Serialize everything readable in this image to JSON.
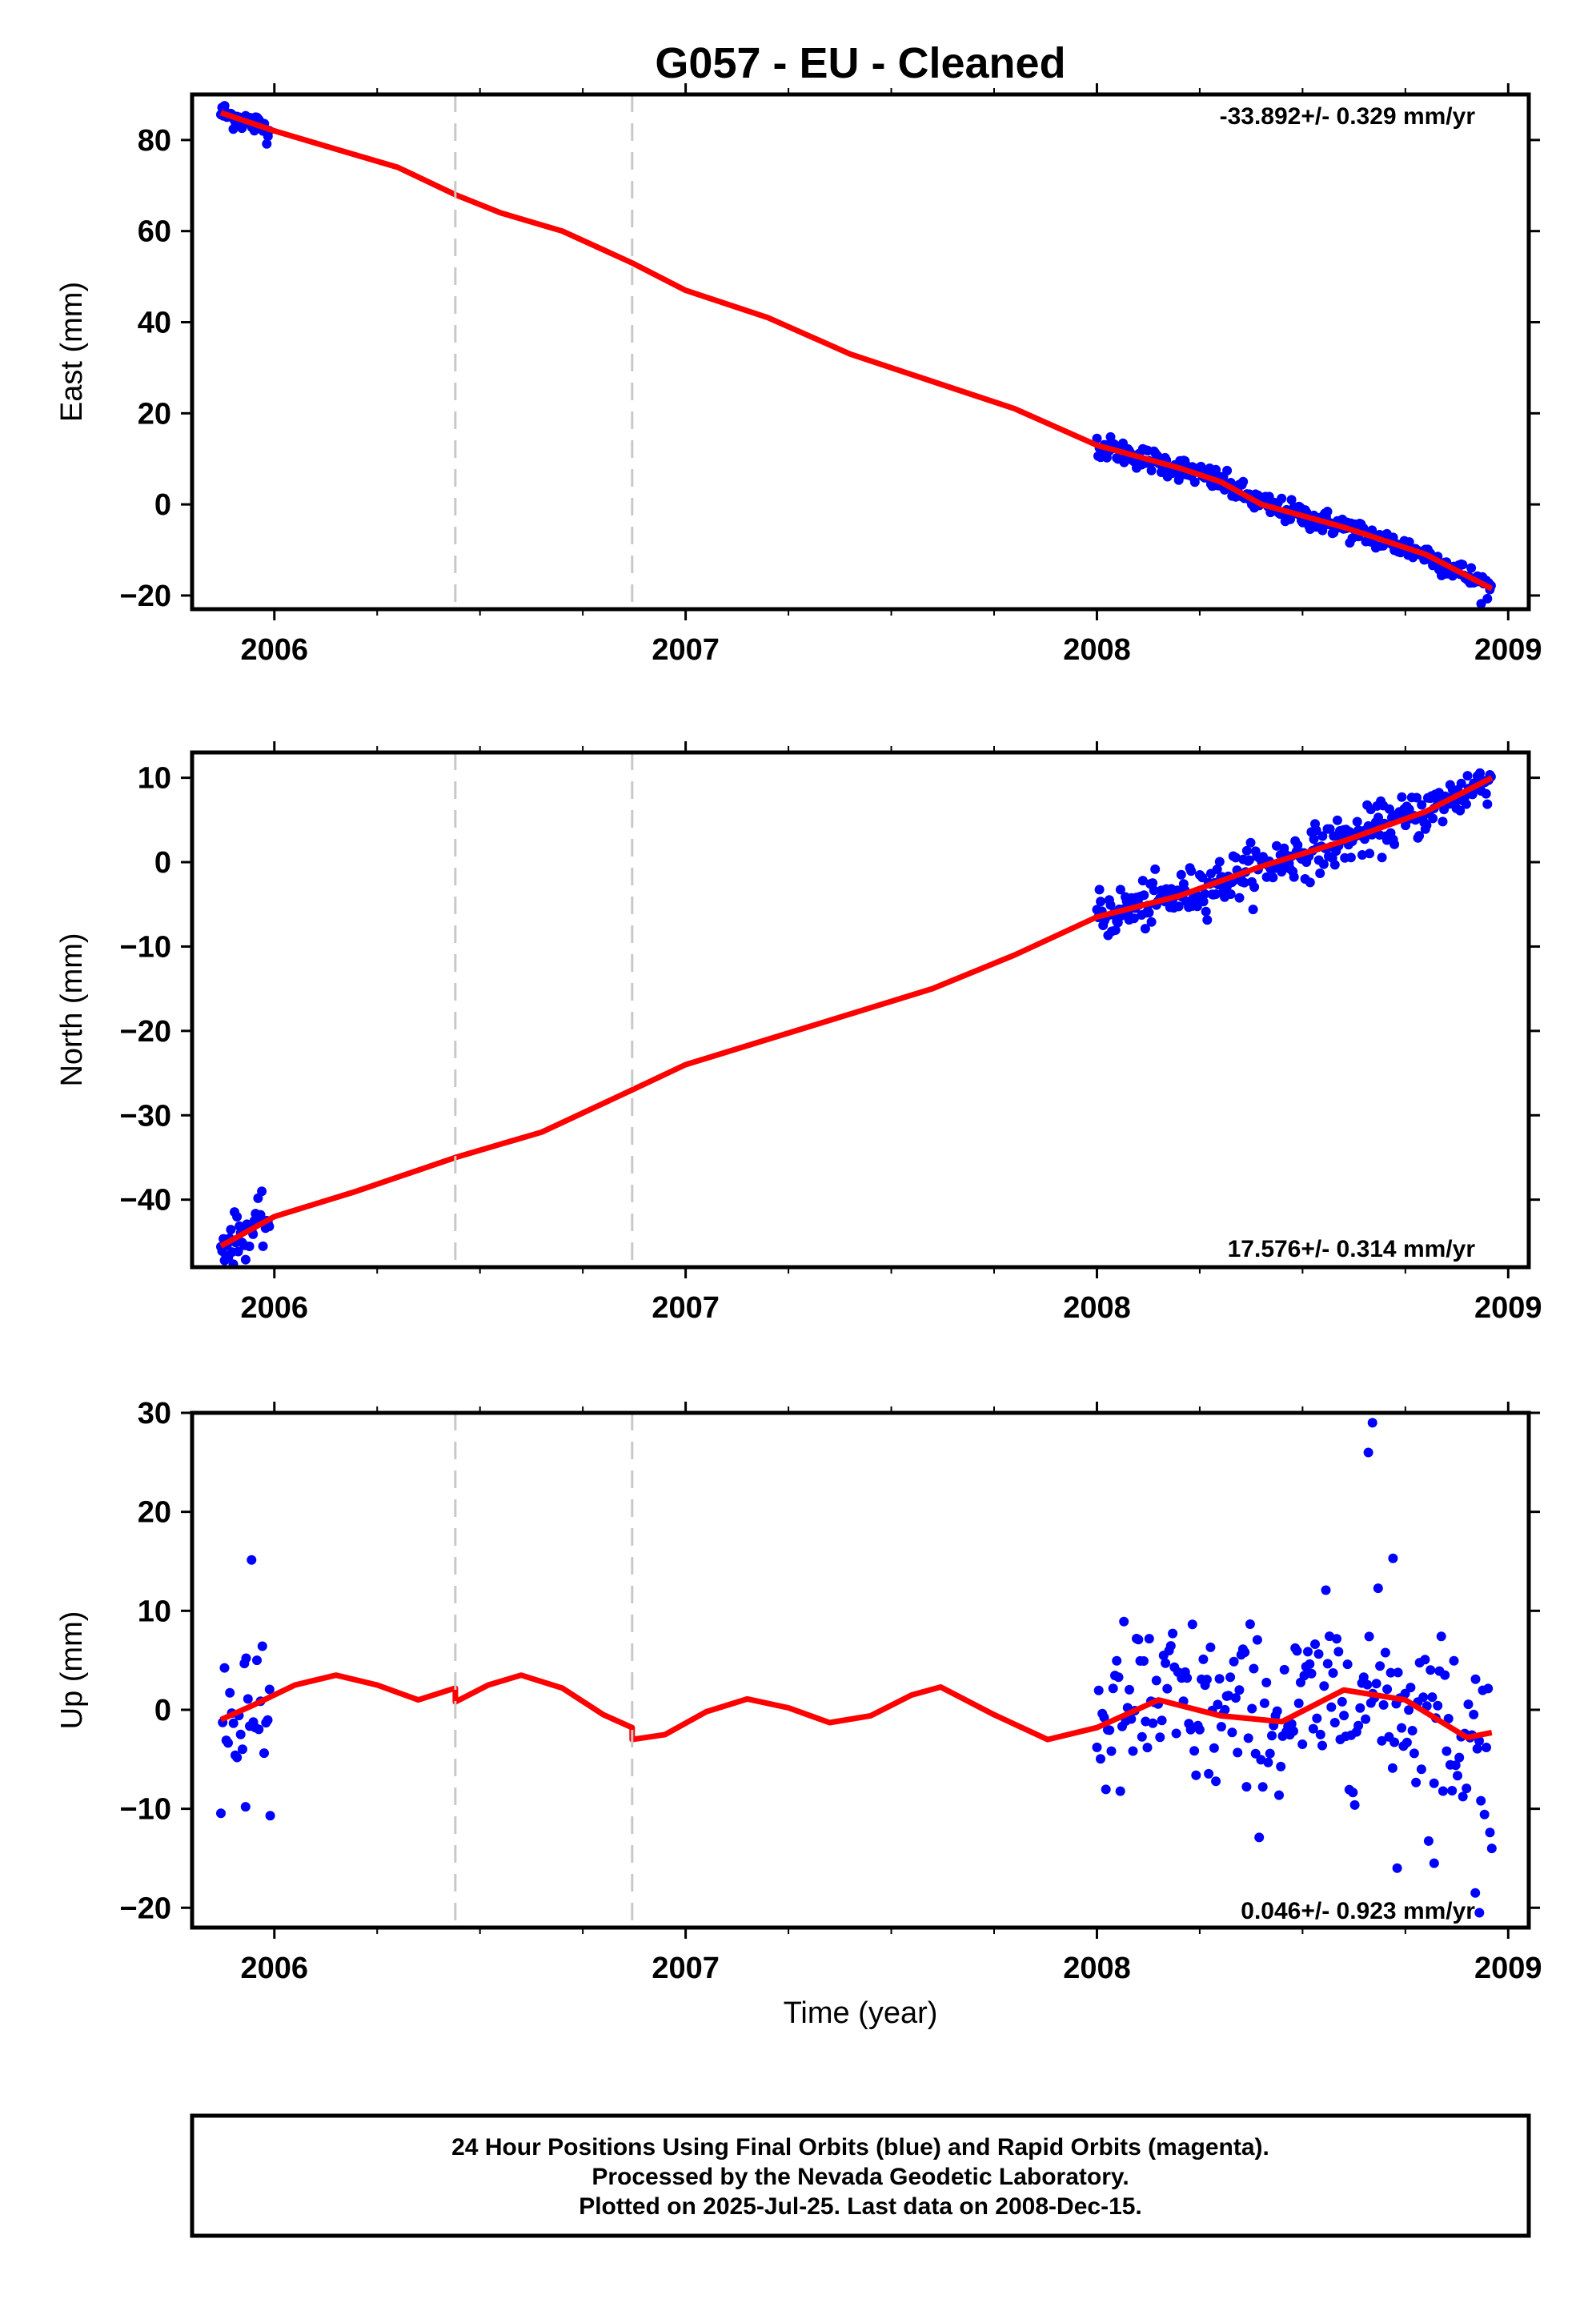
{
  "title": "G057  - EU - Cleaned",
  "xlabel": "Time (year)",
  "footer": [
    "24 Hour Positions Using Final Orbits (blue) and Rapid Orbits (magenta).",
    "Processed by the Nevada Geodetic Laboratory.",
    "Plotted on 2025-Jul-25. Last data on 2008-Dec-15."
  ],
  "colors": {
    "points": "#0000ff",
    "fit": "#ff0000",
    "breaks": "#c8c8c8",
    "frame": "#000000"
  },
  "chart_data": [
    {
      "type": "scatter",
      "component": "east",
      "ylabel": "East (mm)",
      "rate_label": "-33.892+/- 0.329 mm/yr",
      "rate_position": "top-right",
      "xlim": [
        2005.8,
        2009.05
      ],
      "ylim": [
        -23,
        90
      ],
      "xticks": [
        2006,
        2007,
        2008,
        2009
      ],
      "yticks": [
        -20,
        0,
        20,
        40,
        60,
        80
      ],
      "breaks": [
        2006.44,
        2006.87
      ],
      "data_segments": [
        [
          2005.87,
          2005.99
        ],
        [
          2008.0,
          2008.96
        ]
      ],
      "fit_curve": {
        "x": [
          2005.87,
          2006.0,
          2006.15,
          2006.3,
          2006.44,
          2006.55,
          2006.7,
          2006.87,
          2007.0,
          2007.2,
          2007.4,
          2007.6,
          2007.8,
          2008.0,
          2008.2,
          2008.3,
          2008.4,
          2008.6,
          2008.8,
          2008.96
        ],
        "y": [
          86,
          82,
          78,
          74,
          68,
          64,
          60,
          53,
          47,
          41,
          33,
          27,
          21,
          13,
          8,
          5,
          0,
          -5,
          -11,
          -18.5
        ]
      },
      "scatter_noise": 1.3
    },
    {
      "type": "scatter",
      "component": "north",
      "ylabel": "North (mm)",
      "rate_label": "17.576+/- 0.314 mm/yr",
      "rate_position": "bottom-right",
      "xlim": [
        2005.8,
        2009.05
      ],
      "ylim": [
        -48,
        13
      ],
      "xticks": [
        2006,
        2007,
        2008,
        2009
      ],
      "yticks": [
        -40,
        -30,
        -20,
        -10,
        0,
        10
      ],
      "breaks": [
        2006.44,
        2006.87
      ],
      "data_segments": [
        [
          2005.87,
          2005.99
        ],
        [
          2008.0,
          2008.96
        ]
      ],
      "fit_curve": {
        "x": [
          2005.87,
          2006.0,
          2006.2,
          2006.44,
          2006.65,
          2006.87,
          2007.0,
          2007.2,
          2007.4,
          2007.6,
          2007.8,
          2008.0,
          2008.2,
          2008.4,
          2008.6,
          2008.8,
          2008.96
        ],
        "y": [
          -45.5,
          -42,
          -39,
          -35,
          -32,
          -27,
          -24,
          -21,
          -18,
          -15,
          -11,
          -6.5,
          -4,
          -0.5,
          2.5,
          6,
          10
        ]
      },
      "scatter_noise": 1.4
    },
    {
      "type": "scatter",
      "component": "up",
      "ylabel": "Up (mm)",
      "rate_label": "0.046+/- 0.923 mm/yr",
      "rate_position": "bottom-right",
      "xlim": [
        2005.8,
        2009.05
      ],
      "ylim": [
        -22,
        30
      ],
      "xticks": [
        2006,
        2007,
        2008,
        2009
      ],
      "yticks": [
        -20,
        -10,
        0,
        10,
        20,
        30
      ],
      "breaks": [
        2006.44,
        2006.87
      ],
      "data_segments": [
        [
          2005.87,
          2005.99
        ],
        [
          2008.0,
          2008.96
        ]
      ],
      "fit_curve": {
        "x": [
          2005.87,
          2005.95,
          2006.05,
          2006.15,
          2006.25,
          2006.35,
          2006.44,
          2006.44,
          2006.52,
          2006.6,
          2006.7,
          2006.8,
          2006.87,
          2006.87,
          2006.95,
          2007.05,
          2007.15,
          2007.25,
          2007.35,
          2007.45,
          2007.55,
          2007.62,
          2007.75,
          2007.88,
          2008.0,
          2008.15,
          2008.3,
          2008.45,
          2008.6,
          2008.75,
          2008.9,
          2008.96
        ],
        "y": [
          -1,
          0.5,
          2.5,
          3.5,
          2.5,
          1,
          2.2,
          0.8,
          2.5,
          3.5,
          2.2,
          -0.5,
          -1.8,
          -3,
          -2.5,
          -0.2,
          1.1,
          0.2,
          -1.3,
          -0.6,
          1.5,
          2.3,
          -0.5,
          -3,
          -1.8,
          1.0,
          -0.6,
          -1.2,
          2.0,
          1.0,
          -2.8,
          -2.3
        ]
      },
      "scatter_noise": 4.5,
      "outliers": [
        [
          2008.67,
          29
        ],
        [
          2008.66,
          26
        ],
        [
          2008.72,
          15.3
        ],
        [
          2008.73,
          -16
        ],
        [
          2008.93,
          -20.5
        ],
        [
          2008.92,
          -18.5
        ],
        [
          2008.82,
          -15.5
        ],
        [
          2008.96,
          -14
        ],
        [
          2005.99,
          -10.7
        ],
        [
          2005.93,
          -9.8
        ]
      ]
    }
  ]
}
